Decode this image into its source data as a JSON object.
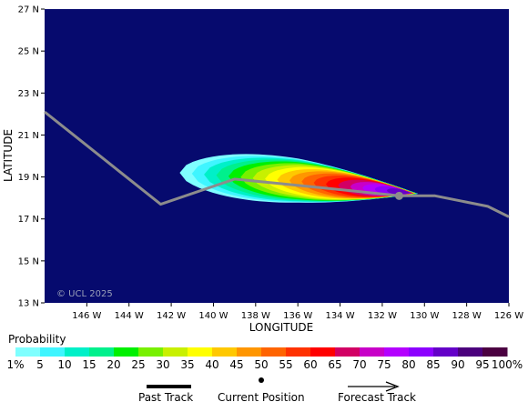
{
  "colors": {
    "ocean": "#060a6e",
    "track": "#8c8c8c",
    "scale": [
      "#7fffff",
      "#3ff5ff",
      "#00f0c8",
      "#00f08c",
      "#00f000",
      "#78f000",
      "#c8f000",
      "#ffff00",
      "#ffc800",
      "#ff9600",
      "#ff6400",
      "#ff3200",
      "#ff0000",
      "#d20064",
      "#c800c8",
      "#b400ff",
      "#8c00ff",
      "#6400c8",
      "#4b007d",
      "#4b0041"
    ]
  },
  "chart_data": {
    "type": "heatmap",
    "xlabel": "LONGITUDE",
    "ylabel": "LATITUDE",
    "xlim": [
      -148,
      -126
    ],
    "ylim": [
      13,
      27
    ],
    "x_ticks": [
      "146 W",
      "144 W",
      "142 W",
      "140 W",
      "138 W",
      "136 W",
      "134 W",
      "132 W",
      "130 W",
      "128 W",
      "126 W"
    ],
    "x_tick_values": [
      -146,
      -144,
      -142,
      -140,
      -138,
      -136,
      -134,
      -132,
      -130,
      -128,
      -126
    ],
    "y_ticks": [
      "13 N",
      "15 N",
      "17 N",
      "19 N",
      "21 N",
      "23 N",
      "25 N",
      "27 N"
    ],
    "y_tick_values": [
      13,
      15,
      17,
      19,
      21,
      23,
      25,
      27
    ],
    "past_track": [
      [
        -148,
        22.1
      ],
      [
        -142.5,
        17.7
      ],
      [
        -139,
        18.9
      ],
      [
        -135,
        18.5
      ],
      [
        -131.2,
        18.1
      ],
      [
        -129.5,
        18.1
      ],
      [
        -127,
        17.6
      ],
      [
        -126,
        17.1
      ]
    ],
    "current_position": [
      -131.2,
      18.1
    ],
    "probability_field": {
      "head_x": -130.3,
      "tail_x": -141.6,
      "center_y": [
        [
          -141.6,
          19.2
        ],
        [
          -136,
          18.8
        ],
        [
          -130.3,
          18.2
        ]
      ],
      "half_width_deg": 1.65,
      "levels": [
        1,
        5,
        10,
        15,
        20,
        25,
        30,
        35,
        40,
        45,
        50,
        55,
        60,
        65,
        70,
        75,
        80,
        85,
        90,
        95,
        100
      ],
      "max_percent": 90
    }
  },
  "watermark": "© UCL 2025",
  "legend": {
    "title": "Probability",
    "scale_labels": [
      "1%",
      "5",
      "10",
      "15",
      "20",
      "25",
      "30",
      "35",
      "40",
      "45",
      "50",
      "55",
      "60",
      "65",
      "70",
      "75",
      "80",
      "85",
      "90",
      "95",
      "100%"
    ],
    "past_track_label": "Past Track",
    "current_position_label": "Current Position",
    "forecast_track_label": "Forecast Track"
  }
}
